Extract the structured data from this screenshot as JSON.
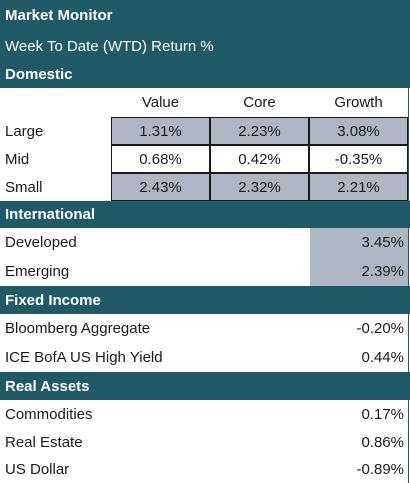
{
  "title": "Market Monitor",
  "subtitle": "Week To Date (WTD) Return %",
  "domestic": {
    "heading": "Domestic",
    "columns": [
      "Value",
      "Core",
      "Growth"
    ],
    "rows": [
      {
        "label": "Large",
        "values": [
          "1.31%",
          "2.23%",
          "3.08%"
        ]
      },
      {
        "label": "Mid",
        "values": [
          "0.68%",
          "0.42%",
          "-0.35%"
        ]
      },
      {
        "label": "Small",
        "values": [
          "2.43%",
          "2.32%",
          "2.21%"
        ]
      }
    ]
  },
  "international": {
    "heading": "International",
    "rows": [
      {
        "label": "Developed",
        "value": "3.45%"
      },
      {
        "label": "Emerging",
        "value": "2.39%"
      }
    ]
  },
  "fixed_income": {
    "heading": "Fixed Income",
    "rows": [
      {
        "label": "Bloomberg Aggregate",
        "value": "-0.20%"
      },
      {
        "label": "ICE BofA US High Yield",
        "value": "0.44%"
      }
    ]
  },
  "real_assets": {
    "heading": "Real Assets",
    "rows": [
      {
        "label": "Commodities",
        "value": "0.17%"
      },
      {
        "label": "Real Estate",
        "value": "0.86%"
      },
      {
        "label": "US Dollar",
        "value": "-0.89%"
      }
    ]
  },
  "colors": {
    "header_bg": "#1f5a66",
    "highlight_bg": "#aeb5c3"
  }
}
